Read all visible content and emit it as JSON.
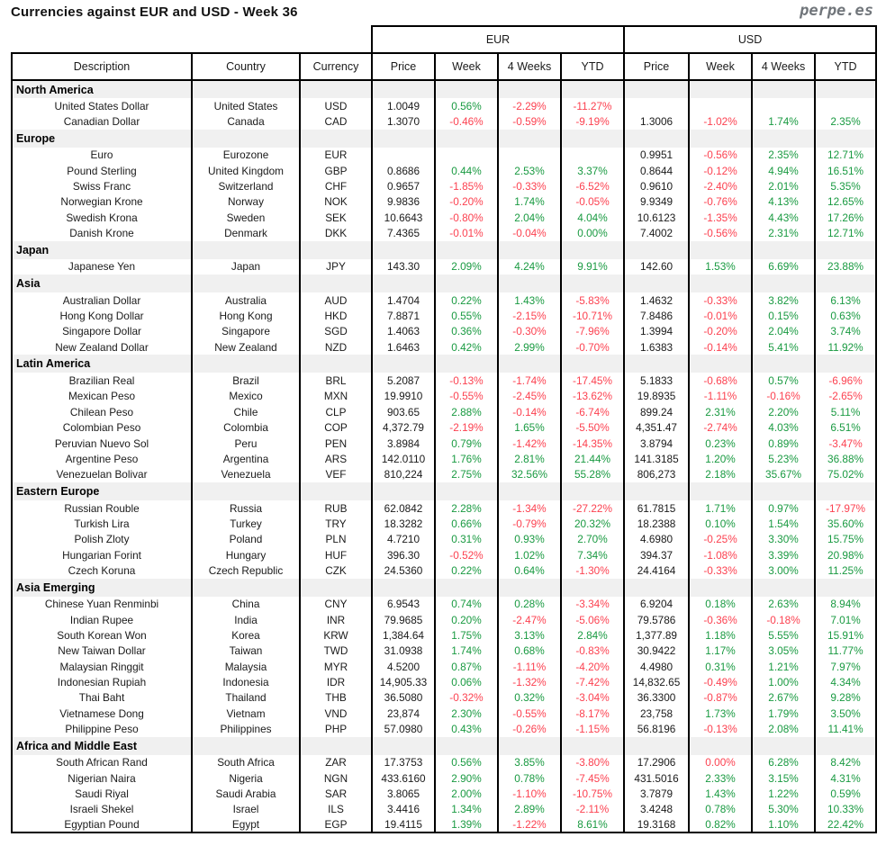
{
  "title": "Currencies against EUR and USD - Week 36",
  "brand": "perpe.es",
  "colors": {
    "positive": "#199a41",
    "negative": "#fc4150",
    "section_band": "#f0f0f0",
    "brand_gray": "#71767b"
  },
  "table": {
    "group_headers": {
      "eur": "EUR",
      "usd": "USD"
    },
    "columns": [
      "Description",
      "Country",
      "Currency",
      "Price",
      "Week",
      "4 Weeks",
      "YTD",
      "Price",
      "Week",
      "4 Weeks",
      "YTD"
    ],
    "sections": [
      {
        "name": "North America",
        "rows": [
          {
            "description": "United States Dollar",
            "country": "United States",
            "currency": "USD",
            "eur": [
              "1.0049",
              "0.56%",
              "-2.29%",
              "-11.27%"
            ],
            "usd": [
              "",
              "",
              "",
              ""
            ]
          },
          {
            "description": "Canadian Dollar",
            "country": "Canada",
            "currency": "CAD",
            "eur": [
              "1.3070",
              "-0.46%",
              "-0.59%",
              "-9.19%"
            ],
            "usd": [
              "1.3006",
              "-1.02%",
              "1.74%",
              "2.35%"
            ]
          }
        ]
      },
      {
        "name": "Europe",
        "rows": [
          {
            "description": "Euro",
            "country": "Eurozone",
            "currency": "EUR",
            "eur": [
              "",
              "",
              "",
              ""
            ],
            "usd": [
              "0.9951",
              "-0.56%",
              "2.35%",
              "12.71%"
            ]
          },
          {
            "description": "Pound Sterling",
            "country": "United Kingdom",
            "currency": "GBP",
            "eur": [
              "0.8686",
              "0.44%",
              "2.53%",
              "3.37%"
            ],
            "usd": [
              "0.8644",
              "-0.12%",
              "4.94%",
              "16.51%"
            ]
          },
          {
            "description": "Swiss Franc",
            "country": "Switzerland",
            "currency": "CHF",
            "eur": [
              "0.9657",
              "-1.85%",
              "-0.33%",
              "-6.52%"
            ],
            "usd": [
              "0.9610",
              "-2.40%",
              "2.01%",
              "5.35%"
            ]
          },
          {
            "description": "Norwegian Krone",
            "country": "Norway",
            "currency": "NOK",
            "eur": [
              "9.9836",
              "-0.20%",
              "1.74%",
              "-0.05%"
            ],
            "usd": [
              "9.9349",
              "-0.76%",
              "4.13%",
              "12.65%"
            ]
          },
          {
            "description": "Swedish Krona",
            "country": "Sweden",
            "currency": "SEK",
            "eur": [
              "10.6643",
              "-0.80%",
              "2.04%",
              "4.04%"
            ],
            "usd": [
              "10.6123",
              "-1.35%",
              "4.43%",
              "17.26%"
            ]
          },
          {
            "description": "Danish Krone",
            "country": "Denmark",
            "currency": "DKK",
            "eur": [
              "7.4365",
              "-0.01%",
              "-0.04%",
              "0.00%"
            ],
            "usd": [
              "7.4002",
              "-0.56%",
              "2.31%",
              "12.71%"
            ]
          }
        ]
      },
      {
        "name": "Japan",
        "rows": [
          {
            "description": "Japanese Yen",
            "country": "Japan",
            "currency": "JPY",
            "eur": [
              "143.30",
              "2.09%",
              "4.24%",
              "9.91%"
            ],
            "usd": [
              "142.60",
              "1.53%",
              "6.69%",
              "23.88%"
            ]
          }
        ]
      },
      {
        "name": "Asia",
        "rows": [
          {
            "description": "Australian Dollar",
            "country": "Australia",
            "currency": "AUD",
            "eur": [
              "1.4704",
              "0.22%",
              "1.43%",
              "-5.83%"
            ],
            "usd": [
              "1.4632",
              "-0.33%",
              "3.82%",
              "6.13%"
            ]
          },
          {
            "description": "Hong Kong Dollar",
            "country": "Hong Kong",
            "currency": "HKD",
            "eur": [
              "7.8871",
              "0.55%",
              "-2.15%",
              "-10.71%"
            ],
            "usd": [
              "7.8486",
              "-0.01%",
              "0.15%",
              "0.63%"
            ]
          },
          {
            "description": "Singapore Dollar",
            "country": "Singapore",
            "currency": "SGD",
            "eur": [
              "1.4063",
              "0.36%",
              "-0.30%",
              "-7.96%"
            ],
            "usd": [
              "1.3994",
              "-0.20%",
              "2.04%",
              "3.74%"
            ]
          },
          {
            "description": "New Zealand Dollar",
            "country": "New Zealand",
            "currency": "NZD",
            "eur": [
              "1.6463",
              "0.42%",
              "2.99%",
              "-0.70%"
            ],
            "usd": [
              "1.6383",
              "-0.14%",
              "5.41%",
              "11.92%"
            ]
          }
        ]
      },
      {
        "name": "Latin America",
        "rows": [
          {
            "description": "Brazilian Real",
            "country": "Brazil",
            "currency": "BRL",
            "eur": [
              "5.2087",
              "-0.13%",
              "-1.74%",
              "-17.45%"
            ],
            "usd": [
              "5.1833",
              "-0.68%",
              "0.57%",
              "-6.96%"
            ]
          },
          {
            "description": "Mexican Peso",
            "country": "Mexico",
            "currency": "MXN",
            "eur": [
              "19.9910",
              "-0.55%",
              "-2.45%",
              "-13.62%"
            ],
            "usd": [
              "19.8935",
              "-1.11%",
              "-0.16%",
              "-2.65%"
            ]
          },
          {
            "description": "Chilean Peso",
            "country": "Chile",
            "currency": "CLP",
            "eur": [
              "903.65",
              "2.88%",
              "-0.14%",
              "-6.74%"
            ],
            "usd": [
              "899.24",
              "2.31%",
              "2.20%",
              "5.11%"
            ]
          },
          {
            "description": "Colombian Peso",
            "country": "Colombia",
            "currency": "COP",
            "eur": [
              "4,372.79",
              "-2.19%",
              "1.65%",
              "-5.50%"
            ],
            "usd": [
              "4,351.47",
              "-2.74%",
              "4.03%",
              "6.51%"
            ]
          },
          {
            "description": "Peruvian Nuevo Sol",
            "country": "Peru",
            "currency": "PEN",
            "eur": [
              "3.8984",
              "0.79%",
              "-1.42%",
              "-14.35%"
            ],
            "usd": [
              "3.8794",
              "0.23%",
              "0.89%",
              "-3.47%"
            ]
          },
          {
            "description": "Argentine Peso",
            "country": "Argentina",
            "currency": "ARS",
            "eur": [
              "142.0110",
              "1.76%",
              "2.81%",
              "21.44%"
            ],
            "usd": [
              "141.3185",
              "1.20%",
              "5.23%",
              "36.88%"
            ]
          },
          {
            "description": "Venezuelan Bolivar",
            "country": "Venezuela",
            "currency": "VEF",
            "eur": [
              "810,224",
              "2.75%",
              "32.56%",
              "55.28%"
            ],
            "usd": [
              "806,273",
              "2.18%",
              "35.67%",
              "75.02%"
            ]
          }
        ]
      },
      {
        "name": "Eastern Europe",
        "rows": [
          {
            "description": "Russian Rouble",
            "country": "Russia",
            "currency": "RUB",
            "eur": [
              "62.0842",
              "2.28%",
              "-1.34%",
              "-27.22%"
            ],
            "usd": [
              "61.7815",
              "1.71%",
              "0.97%",
              "-17.97%"
            ]
          },
          {
            "description": "Turkish Lira",
            "country": "Turkey",
            "currency": "TRY",
            "eur": [
              "18.3282",
              "0.66%",
              "-0.79%",
              "20.32%"
            ],
            "usd": [
              "18.2388",
              "0.10%",
              "1.54%",
              "35.60%"
            ]
          },
          {
            "description": "Polish Zloty",
            "country": "Poland",
            "currency": "PLN",
            "eur": [
              "4.7210",
              "0.31%",
              "0.93%",
              "2.70%"
            ],
            "usd": [
              "4.6980",
              "-0.25%",
              "3.30%",
              "15.75%"
            ]
          },
          {
            "description": "Hungarian Forint",
            "country": "Hungary",
            "currency": "HUF",
            "eur": [
              "396.30",
              "-0.52%",
              "1.02%",
              "7.34%"
            ],
            "usd": [
              "394.37",
              "-1.08%",
              "3.39%",
              "20.98%"
            ]
          },
          {
            "description": "Czech Koruna",
            "country": "Czech Republic",
            "currency": "CZK",
            "eur": [
              "24.5360",
              "0.22%",
              "0.64%",
              "-1.30%"
            ],
            "usd": [
              "24.4164",
              "-0.33%",
              "3.00%",
              "11.25%"
            ]
          }
        ]
      },
      {
        "name": "Asia Emerging",
        "rows": [
          {
            "description": "Chinese Yuan Renminbi",
            "country": "China",
            "currency": "CNY",
            "eur": [
              "6.9543",
              "0.74%",
              "0.28%",
              "-3.34%"
            ],
            "usd": [
              "6.9204",
              "0.18%",
              "2.63%",
              "8.94%"
            ]
          },
          {
            "description": "Indian Rupee",
            "country": "India",
            "currency": "INR",
            "eur": [
              "79.9685",
              "0.20%",
              "-2.47%",
              "-5.06%"
            ],
            "usd": [
              "79.5786",
              "-0.36%",
              "-0.18%",
              "7.01%"
            ]
          },
          {
            "description": "South Korean Won",
            "country": "Korea",
            "currency": "KRW",
            "eur": [
              "1,384.64",
              "1.75%",
              "3.13%",
              "2.84%"
            ],
            "usd": [
              "1,377.89",
              "1.18%",
              "5.55%",
              "15.91%"
            ]
          },
          {
            "description": "New Taiwan Dollar",
            "country": "Taiwan",
            "currency": "TWD",
            "eur": [
              "31.0938",
              "1.74%",
              "0.68%",
              "-0.83%"
            ],
            "usd": [
              "30.9422",
              "1.17%",
              "3.05%",
              "11.77%"
            ]
          },
          {
            "description": "Malaysian Ringgit",
            "country": "Malaysia",
            "currency": "MYR",
            "eur": [
              "4.5200",
              "0.87%",
              "-1.11%",
              "-4.20%"
            ],
            "usd": [
              "4.4980",
              "0.31%",
              "1.21%",
              "7.97%"
            ]
          },
          {
            "description": "Indonesian Rupiah",
            "country": "Indonesia",
            "currency": "IDR",
            "eur": [
              "14,905.33",
              "0.06%",
              "-1.32%",
              "-7.42%"
            ],
            "usd": [
              "14,832.65",
              "-0.49%",
              "1.00%",
              "4.34%"
            ]
          },
          {
            "description": "Thai Baht",
            "country": "Thailand",
            "currency": "THB",
            "eur": [
              "36.5080",
              "-0.32%",
              "0.32%",
              "-3.04%"
            ],
            "usd": [
              "36.3300",
              "-0.87%",
              "2.67%",
              "9.28%"
            ]
          },
          {
            "description": "Vietnamese Dong",
            "country": "Vietnam",
            "currency": "VND",
            "eur": [
              "23,874",
              "2.30%",
              "-0.55%",
              "-8.17%"
            ],
            "usd": [
              "23,758",
              "1.73%",
              "1.79%",
              "3.50%"
            ]
          },
          {
            "description": "Philippine Peso",
            "country": "Philippines",
            "currency": "PHP",
            "eur": [
              "57.0980",
              "0.43%",
              "-0.26%",
              "-1.15%"
            ],
            "usd": [
              "56.8196",
              "-0.13%",
              "2.08%",
              "11.41%"
            ]
          }
        ]
      },
      {
        "name": "Africa and Middle East",
        "rows": [
          {
            "description": "South African Rand",
            "country": "South Africa",
            "currency": "ZAR",
            "eur": [
              "17.3753",
              "0.56%",
              "3.85%",
              "-3.80%"
            ],
            "usd": [
              "17.2906",
              "0.00%",
              "6.28%",
              "8.42%"
            ],
            "usd_colors": [
              null,
              "neg",
              null,
              null
            ]
          },
          {
            "description": "Nigerian Naira",
            "country": "Nigeria",
            "currency": "NGN",
            "eur": [
              "433.6160",
              "2.90%",
              "0.78%",
              "-7.45%"
            ],
            "usd": [
              "431.5016",
              "2.33%",
              "3.15%",
              "4.31%"
            ]
          },
          {
            "description": "Saudi Riyal",
            "country": "Saudi Arabia",
            "currency": "SAR",
            "eur": [
              "3.8065",
              "2.00%",
              "-1.10%",
              "-10.75%"
            ],
            "usd": [
              "3.7879",
              "1.43%",
              "1.22%",
              "0.59%"
            ]
          },
          {
            "description": "Israeli Shekel",
            "country": "Israel",
            "currency": "ILS",
            "eur": [
              "3.4416",
              "1.34%",
              "2.89%",
              "-2.11%"
            ],
            "usd": [
              "3.4248",
              "0.78%",
              "5.30%",
              "10.33%"
            ]
          },
          {
            "description": "Egyptian Pound",
            "country": "Egypt",
            "currency": "EGP",
            "eur": [
              "19.4115",
              "1.39%",
              "-1.22%",
              "8.61%"
            ],
            "usd": [
              "19.3168",
              "0.82%",
              "1.10%",
              "22.42%"
            ]
          }
        ]
      }
    ]
  }
}
